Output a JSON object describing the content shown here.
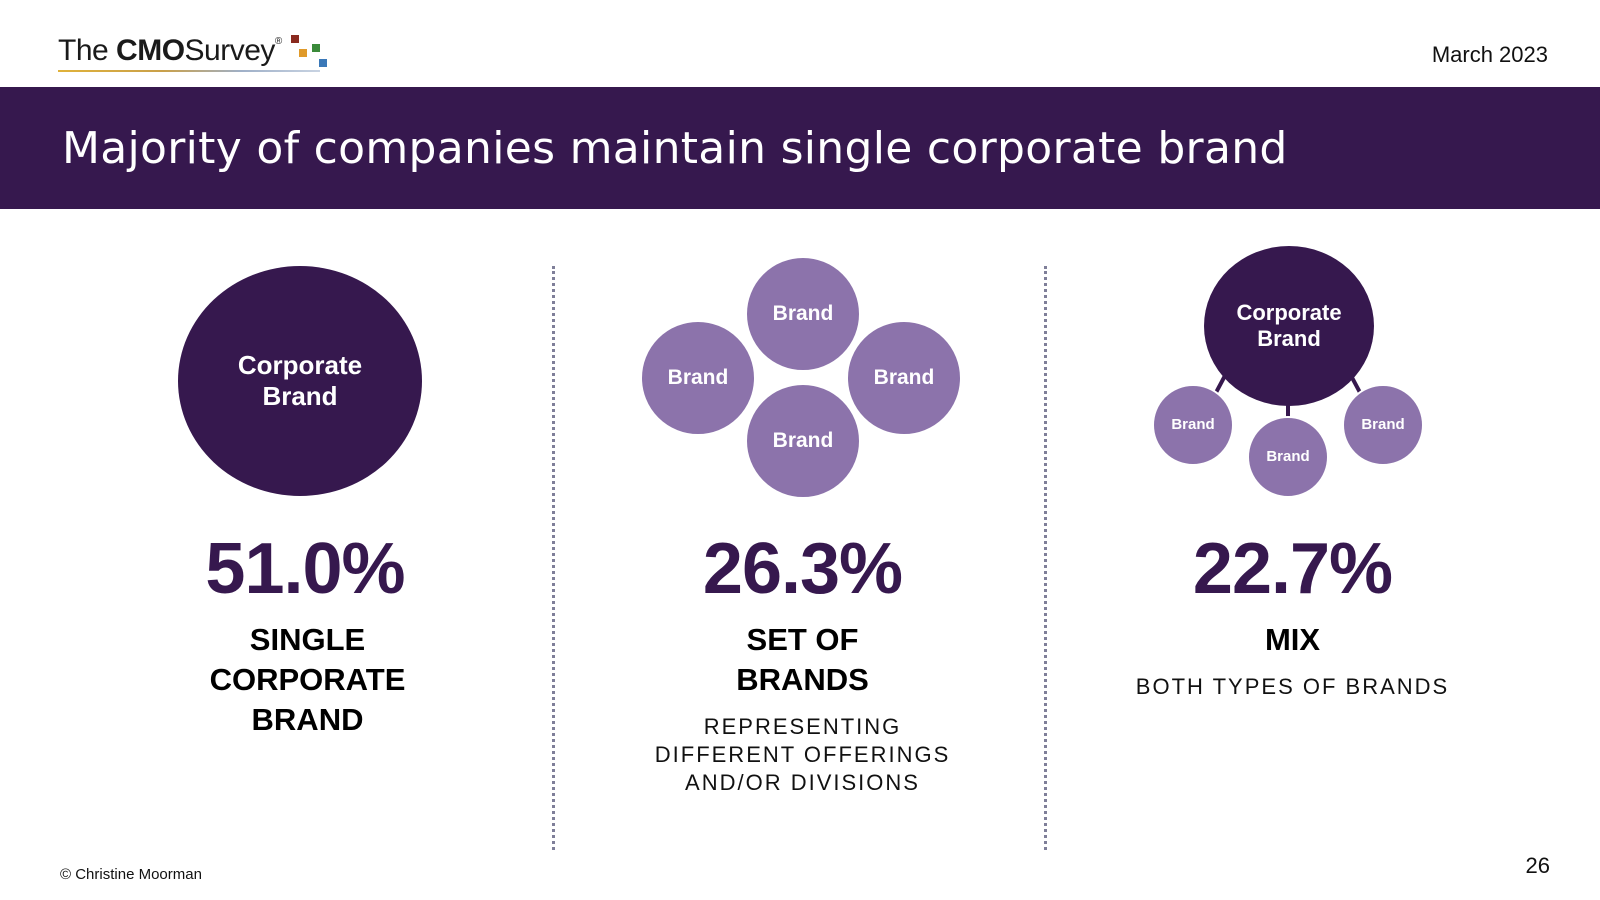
{
  "header": {
    "logo": {
      "the": "The",
      "cmo": "CMO",
      "survey": "Survey",
      "reg": "®"
    },
    "date": "March 2023"
  },
  "banner": {
    "title": "Majority of companies maintain single corporate brand"
  },
  "colors": {
    "dark_purple": "#36184e",
    "light_purple": "#8c73ab"
  },
  "columns": [
    {
      "circle_label_line1": "Corporate",
      "circle_label_line2": "Brand",
      "percent": "51.0%",
      "label_lines": [
        "SINGLE",
        "CORPORATE",
        "BRAND"
      ]
    },
    {
      "brand_label": "Brand",
      "percent": "26.3%",
      "label_lines": [
        "SET OF",
        "BRANDS"
      ],
      "sub_lines": [
        "REPRESENTING",
        "DIFFERENT OFFERINGS",
        "AND/OR DIVISIONS"
      ]
    },
    {
      "circle_label_line1": "Corporate",
      "circle_label_line2": "Brand",
      "brand_label": "Brand",
      "percent": "22.7%",
      "label_lines": [
        "MIX"
      ],
      "sub_lines": [
        "BOTH TYPES OF BRANDS"
      ]
    }
  ],
  "footer": {
    "copyright": "© Christine Moorman",
    "page_number": "26"
  }
}
